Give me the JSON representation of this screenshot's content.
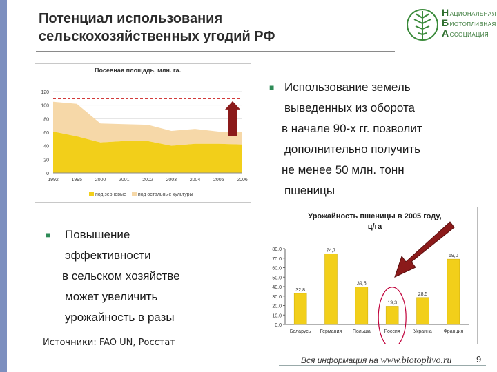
{
  "slide": {
    "title_line1": "Потенциал использования",
    "title_line2": "сельскохозяйственных угодий РФ",
    "logo": {
      "letters": [
        "Н",
        "Б",
        "А"
      ],
      "words": [
        "АЦИОНАЛЬНАЯ",
        "ИОТОПЛИВНАЯ",
        "ССОЦИАЦИЯ"
      ]
    },
    "bullet_right": [
      "Использование земель",
      "выведенных из оборота",
      "в начале 90-х гг. позволит",
      "дополнительно получить",
      "не менее 50 млн. тонн",
      "пшеницы"
    ],
    "bullet_left": [
      "Повышение",
      "эффективности",
      "в сельском хозяйстве",
      "может увеличить",
      "урожайность в разы"
    ],
    "sources": "Источники: FAO UN, Росстат",
    "footer_text": "Вся информация на",
    "footer_site": "www.biotoplivo.ru",
    "page_number": "9",
    "colors": {
      "accent_bar": "#7d8fbf",
      "bullet": "#2e8b57",
      "arrow": "#8b1a1a",
      "circle": "#c0003a"
    }
  },
  "chart_data": [
    {
      "type": "area",
      "title": "Посевная площадь, млн. га.",
      "categories": [
        "1992",
        "1995",
        "2000",
        "2001",
        "2002",
        "2003",
        "2004",
        "2005",
        "2006"
      ],
      "ylim": [
        0,
        120
      ],
      "yticks": [
        "0",
        "20",
        "40",
        "60",
        "80",
        "100",
        "120"
      ],
      "series": [
        {
          "name": "под зерновые",
          "values": [
            61,
            54,
            45,
            47,
            47,
            40,
            43,
            43,
            42
          ],
          "color": "#f2cf1a"
        },
        {
          "name": "под остальные культуры",
          "values": [
            44,
            48,
            28,
            25,
            24,
            22,
            22,
            18,
            18
          ],
          "color": "#f6d8a8"
        }
      ],
      "reference_line": 110
    },
    {
      "type": "bar",
      "title_line1": "Урожайность пшеницы в 2005 году,",
      "title_line2": "ц/га",
      "categories": [
        "Беларусь",
        "Германия",
        "Польша",
        "Россия",
        "Украина",
        "Франция"
      ],
      "values": [
        32.8,
        74.7,
        39.5,
        19.3,
        28.5,
        69.0
      ],
      "value_labels": [
        "32,8",
        "74,7",
        "39,5",
        "19,3",
        "28,5",
        "69,0"
      ],
      "ylim": [
        0,
        80
      ],
      "yticks": [
        "0.0",
        "10.0",
        "20.0",
        "30.0",
        "40.0",
        "50.0",
        "60.0",
        "70.0",
        "80.0"
      ],
      "bar_color": "#f2cf1a"
    }
  ]
}
